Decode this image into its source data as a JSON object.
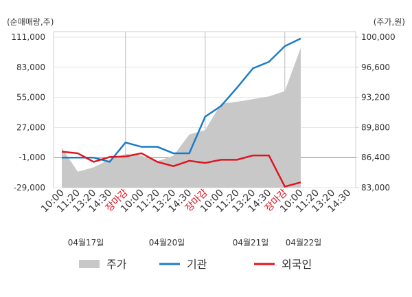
{
  "chart_data": {
    "type": "line",
    "y_axis_label": "(순매매량,주)",
    "y2_axis_label": "(주가,원)",
    "categories": [
      "10:00",
      "11:20",
      "13:20",
      "14:30",
      "장마감",
      "10:00",
      "11:20",
      "13:20",
      "14:30",
      "장마감",
      "10:00",
      "11:20",
      "13:20",
      "14:30",
      "장마감",
      "10:00",
      "11:20",
      "13:20",
      "14:30"
    ],
    "dates": [
      "04월17일",
      "04월20일",
      "04월21일",
      "04월22일"
    ],
    "ylim": [
      -29000,
      111000
    ],
    "yticks": [
      {
        "value": -29000,
        "label": "-29,000"
      },
      {
        "value": -1000,
        "label": "-1,000"
      },
      {
        "value": 27000,
        "label": "27,000"
      },
      {
        "value": 55000,
        "label": "55,000"
      },
      {
        "value": 83000,
        "label": "83,000"
      },
      {
        "value": 111000,
        "label": "111,000"
      }
    ],
    "y2lim": [
      83000,
      100000
    ],
    "y2ticks": [
      {
        "value": 83000,
        "label": "83,000"
      },
      {
        "value": 86400,
        "label": "86,400"
      },
      {
        "value": 89800,
        "label": "89,800"
      },
      {
        "value": 93200,
        "label": "93,200"
      },
      {
        "value": 96600,
        "label": "96,600"
      },
      {
        "value": 100000,
        "label": "100,000"
      }
    ],
    "series": [
      {
        "name": "주가",
        "color": "#c8c8c8",
        "kind": "area",
        "axis": "y2",
        "values": [
          87500,
          84800,
          85300,
          86200,
          86800,
          86600,
          86000,
          86600,
          89000,
          89500,
          92500,
          92700,
          93000,
          93300,
          93900,
          98800,
          null,
          null,
          null
        ]
      },
      {
        "name": "기관",
        "color": "#1a7cc8",
        "kind": "line",
        "values": [
          -1000,
          -1000,
          -1000,
          -5000,
          13000,
          9000,
          9000,
          3000,
          3000,
          37000,
          47000,
          64000,
          82000,
          88000,
          102600,
          109700,
          null,
          null,
          null
        ]
      },
      {
        "name": "외국인",
        "color": "#e0141e",
        "kind": "line",
        "values": [
          4500,
          3000,
          -5000,
          -500,
          0,
          3000,
          -5000,
          -9000,
          -4000,
          -6000,
          -3000,
          -3000,
          1000,
          1000,
          -28000,
          -24000,
          null,
          null,
          null
        ]
      }
    ]
  }
}
